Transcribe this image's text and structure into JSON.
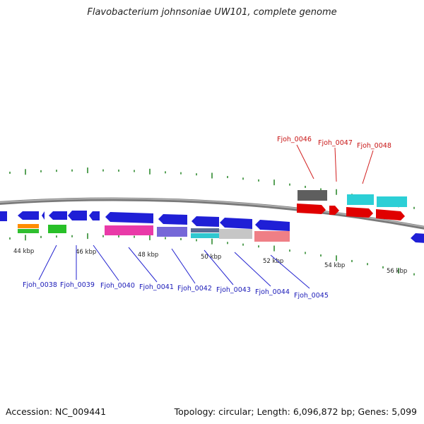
{
  "title": "Flavobacterium johnsoniae UW101, complete genome",
  "accession": "Accession: NC_009441",
  "summary": "Topology: circular; Length: 6,096,872 bp; Genes: 5,099",
  "colors": {
    "backbone": "#7f7f7f",
    "tick": "#2f8a2f",
    "cds": "#1f1fd6",
    "rrna": "#e00000",
    "label_blue": "#1a1ab8",
    "label_red": "#c81414",
    "leader_blue": "#2323d0",
    "leader_red": "#d21e1e"
  },
  "scale_labels": [
    "44 kbp",
    "46 kbp",
    "48 kbp",
    "50 kbp",
    "52 kbp",
    "54 kbp",
    "56 kbp"
  ],
  "gene_labels_bottom": [
    "Fjoh_0038",
    "Fjoh_0039",
    "Fjoh_0040",
    "Fjoh_0041",
    "Fjoh_0042",
    "Fjoh_0043",
    "Fjoh_0044",
    "Fjoh_0045"
  ],
  "gene_labels_top": [
    "Fjoh_0046",
    "Fjoh_0047",
    "Fjoh_0048"
  ]
}
